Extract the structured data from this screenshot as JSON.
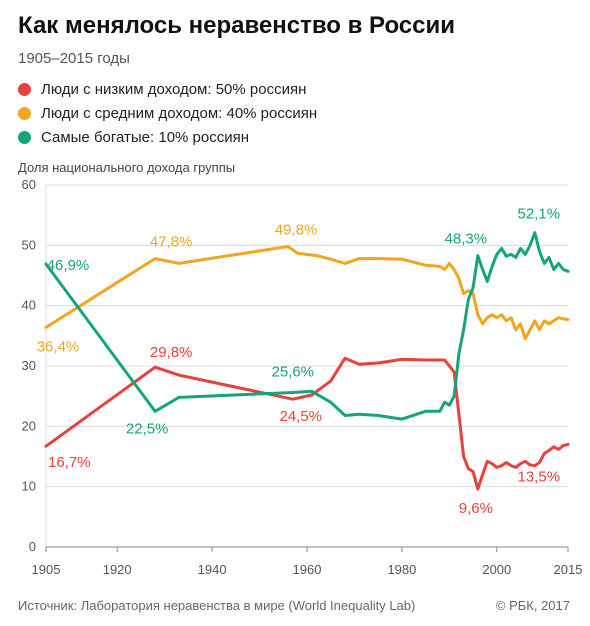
{
  "chart_data": {
    "type": "line",
    "title": "Как менялось неравенство в России",
    "subtitle": "1905–2015 годы",
    "ylabel": "Доля национального дохода группы",
    "xlabel": "",
    "xlim": [
      1905,
      2015
    ],
    "ylim": [
      0,
      60
    ],
    "x_ticks": [
      1905,
      1920,
      1940,
      1960,
      1980,
      2000,
      2015
    ],
    "y_ticks": [
      0,
      10,
      20,
      30,
      40,
      50,
      60
    ],
    "grid": true,
    "legend_position": "top-left",
    "series": [
      {
        "name": "Люди с низким доходом: 50% россиян",
        "color": "#e8403a",
        "points": [
          [
            1905,
            16.7
          ],
          [
            1928,
            29.8
          ],
          [
            1933,
            28.5
          ],
          [
            1957,
            24.5
          ],
          [
            1961,
            25.2
          ],
          [
            1965,
            27.5
          ],
          [
            1968,
            31.3
          ],
          [
            1971,
            30.3
          ],
          [
            1975,
            30.5
          ],
          [
            1980,
            31.1
          ],
          [
            1985,
            31.0
          ],
          [
            1989,
            31.0
          ],
          [
            1990,
            30.0
          ],
          [
            1991,
            29.0
          ],
          [
            1992,
            22.0
          ],
          [
            1993,
            15.0
          ],
          [
            1994,
            13.0
          ],
          [
            1995,
            12.5
          ],
          [
            1996,
            9.6
          ],
          [
            1997,
            12.0
          ],
          [
            1998,
            14.2
          ],
          [
            1999,
            13.8
          ],
          [
            2000,
            13.2
          ],
          [
            2001,
            13.5
          ],
          [
            2002,
            14.0
          ],
          [
            2003,
            13.5
          ],
          [
            2004,
            13.2
          ],
          [
            2005,
            13.8
          ],
          [
            2006,
            14.2
          ],
          [
            2007,
            13.6
          ],
          [
            2008,
            13.5
          ],
          [
            2009,
            14.0
          ],
          [
            2010,
            15.5
          ],
          [
            2011,
            16.0
          ],
          [
            2012,
            16.6
          ],
          [
            2013,
            16.2
          ],
          [
            2014,
            16.8
          ],
          [
            2015,
            17.0
          ]
        ],
        "labels": [
          {
            "x": 1905,
            "y": 16.7,
            "text": "16,7%"
          },
          {
            "x": 1928,
            "y": 29.8,
            "text": "29,8%"
          },
          {
            "x": 1957,
            "y": 24.5,
            "text": "24,5%"
          },
          {
            "x": 1996,
            "y": 9.6,
            "text": "9,6%"
          },
          {
            "x": 2008,
            "y": 13.5,
            "text": "13,5%"
          }
        ]
      },
      {
        "name": "Люди с средним доходом: 40% россиян",
        "color": "#f2a51e",
        "points": [
          [
            1905,
            36.4
          ],
          [
            1928,
            47.8
          ],
          [
            1933,
            47.0
          ],
          [
            1956,
            49.8
          ],
          [
            1958,
            48.7
          ],
          [
            1962,
            48.3
          ],
          [
            1965,
            47.7
          ],
          [
            1968,
            47.0
          ],
          [
            1971,
            47.8
          ],
          [
            1975,
            47.8
          ],
          [
            1980,
            47.7
          ],
          [
            1985,
            46.7
          ],
          [
            1988,
            46.5
          ],
          [
            1989,
            46.0
          ],
          [
            1990,
            47.0
          ],
          [
            1991,
            46.0
          ],
          [
            1992,
            44.5
          ],
          [
            1993,
            42.0
          ],
          [
            1994,
            42.5
          ],
          [
            1995,
            42.0
          ],
          [
            1996,
            38.5
          ],
          [
            1997,
            37.0
          ],
          [
            1998,
            38.0
          ],
          [
            1999,
            38.5
          ],
          [
            2000,
            38.0
          ],
          [
            2001,
            38.5
          ],
          [
            2002,
            37.5
          ],
          [
            2003,
            38.0
          ],
          [
            2004,
            36.0
          ],
          [
            2005,
            37.0
          ],
          [
            2006,
            34.5
          ],
          [
            2007,
            36.0
          ],
          [
            2008,
            37.5
          ],
          [
            2009,
            36.0
          ],
          [
            2010,
            37.5
          ],
          [
            2011,
            37.0
          ],
          [
            2012,
            37.5
          ],
          [
            2013,
            38.0
          ],
          [
            2014,
            37.8
          ],
          [
            2015,
            37.7
          ]
        ],
        "labels": [
          {
            "x": 1905,
            "y": 36.4,
            "text": "36,4%"
          },
          {
            "x": 1928,
            "y": 47.8,
            "text": "47,8%"
          },
          {
            "x": 1956,
            "y": 49.8,
            "text": "49,8%"
          }
        ]
      },
      {
        "name": "Самые богатые: 10% россиян",
        "color": "#14a676",
        "points": [
          [
            1905,
            46.9
          ],
          [
            1928,
            22.5
          ],
          [
            1933,
            24.8
          ],
          [
            1957,
            25.6
          ],
          [
            1961,
            25.8
          ],
          [
            1965,
            24.0
          ],
          [
            1968,
            21.8
          ],
          [
            1971,
            22.0
          ],
          [
            1975,
            21.8
          ],
          [
            1980,
            21.2
          ],
          [
            1985,
            22.5
          ],
          [
            1988,
            22.5
          ],
          [
            1989,
            24.0
          ],
          [
            1990,
            23.5
          ],
          [
            1991,
            25.0
          ],
          [
            1992,
            32.0
          ],
          [
            1993,
            36.0
          ],
          [
            1994,
            41.0
          ],
          [
            1995,
            43.0
          ],
          [
            1996,
            48.3
          ],
          [
            1997,
            46.0
          ],
          [
            1998,
            44.0
          ],
          [
            1999,
            46.5
          ],
          [
            2000,
            48.5
          ],
          [
            2001,
            49.5
          ],
          [
            2002,
            48.2
          ],
          [
            2003,
            48.5
          ],
          [
            2004,
            48.0
          ],
          [
            2005,
            49.5
          ],
          [
            2006,
            48.5
          ],
          [
            2007,
            50.0
          ],
          [
            2008,
            52.1
          ],
          [
            2009,
            49.0
          ],
          [
            2010,
            47.0
          ],
          [
            2011,
            48.0
          ],
          [
            2012,
            46.0
          ],
          [
            2013,
            47.0
          ],
          [
            2014,
            46.0
          ],
          [
            2015,
            45.7
          ]
        ],
        "labels": [
          {
            "x": 1905,
            "y": 46.9,
            "text": "46,9%"
          },
          {
            "x": 1928,
            "y": 22.5,
            "text": "22,5%"
          },
          {
            "x": 1957,
            "y": 25.6,
            "text": "25,6%"
          },
          {
            "x": 1996,
            "y": 48.3,
            "text": "48,3%"
          },
          {
            "x": 2008,
            "y": 52.1,
            "text": "52,1%"
          }
        ]
      }
    ]
  },
  "legend": {
    "items": [
      {
        "label": "Люди с низким доходом: 50% россиян",
        "color": "#e8403a"
      },
      {
        "label": "Люди с средним доходом: 40% россиян",
        "color": "#f2a51e"
      },
      {
        "label": "Самые богатые: 10% россиян",
        "color": "#14a676"
      }
    ]
  },
  "footer": {
    "source": "Источник: Лаборатория неравенства в мире (World Inequality Lab)",
    "copyright": "© РБК, 2017"
  }
}
